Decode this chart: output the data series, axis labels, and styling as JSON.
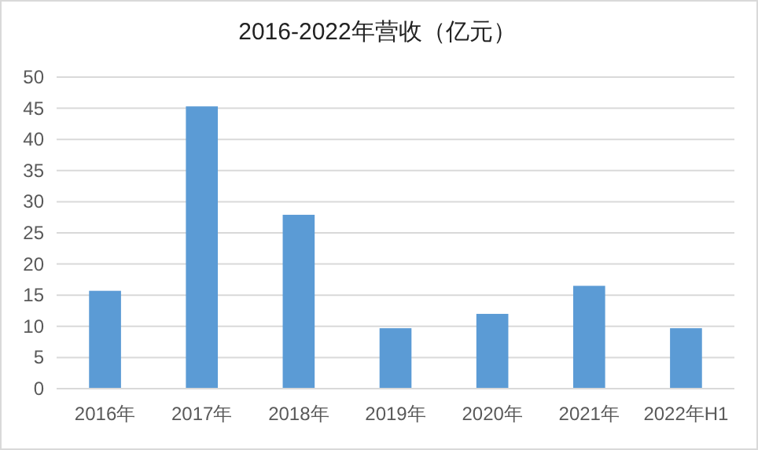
{
  "chart_data": {
    "type": "bar",
    "title": "2016-2022年营收（亿元）",
    "categories": [
      "2016年",
      "2017年",
      "2018年",
      "2019年",
      "2020年",
      "2021年",
      "2022年H1"
    ],
    "values": [
      15.7,
      45.3,
      27.9,
      9.7,
      12.0,
      16.5,
      9.7
    ],
    "color": "#5b9bd5",
    "ylim": [
      0,
      50
    ],
    "yticks": [
      0,
      5,
      10,
      15,
      20,
      25,
      30,
      35,
      40,
      45,
      50
    ],
    "grid": "y"
  }
}
